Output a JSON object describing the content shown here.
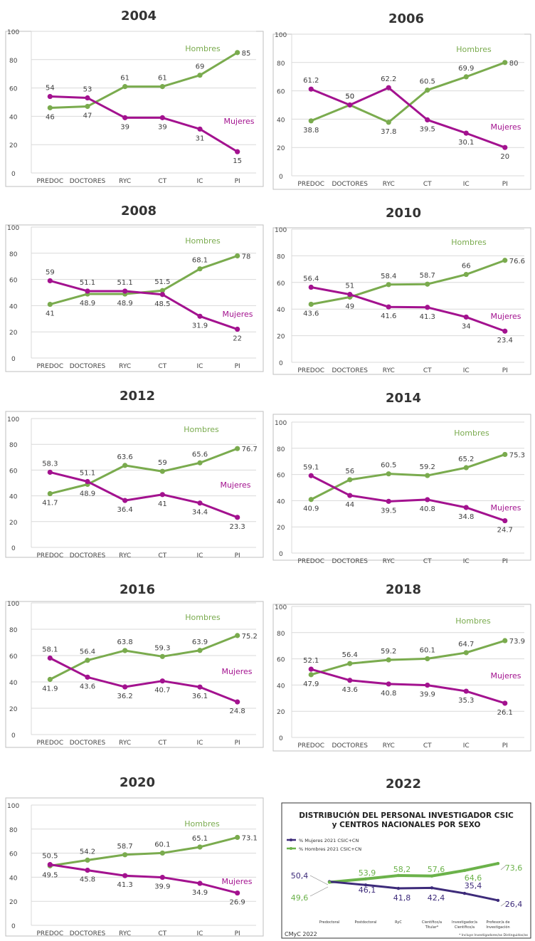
{
  "colors": {
    "hombres": "#7aab4e",
    "mujeres": "#a3128f",
    "grid": "#d9d9d9",
    "axis": "#595959",
    "text": "#444444",
    "dark_line": "#3d2b7a",
    "legend_line": "#6bb24a",
    "legend_dot": "#5b3c9a"
  },
  "chart_data": [
    {
      "type": "line",
      "title": "2004",
      "categories": [
        "PREDOC",
        "DOCTORES",
        "RYC",
        "CT",
        "IC",
        "PI"
      ],
      "ylim": [
        0,
        100
      ],
      "yticks": [
        "0",
        "20",
        "40",
        "60",
        "80",
        "100"
      ],
      "series": [
        {
          "name": "Hombres",
          "values": [
            46,
            47,
            61,
            61,
            69,
            85
          ],
          "labels": [
            "46",
            "47",
            "61",
            "61",
            "69",
            "85"
          ]
        },
        {
          "name": "Mujeres",
          "values": [
            54,
            53,
            39,
            39,
            31,
            15
          ],
          "labels": [
            "54",
            "53",
            "39",
            "39",
            "31",
            "15"
          ]
        }
      ],
      "grid": true
    },
    {
      "type": "line",
      "title": "2006",
      "categories": [
        "PREDOC",
        "DOCTORES",
        "RYC",
        "CT",
        "IC",
        "PI"
      ],
      "ylim": [
        0,
        100
      ],
      "yticks": [
        "0",
        "20",
        "40",
        "60",
        "80",
        "100"
      ],
      "series": [
        {
          "name": "Hombres",
          "values": [
            38.8,
            50,
            37.8,
            60.5,
            69.9,
            80
          ],
          "labels": [
            "38.8",
            "50",
            "37.8",
            "60.5",
            "69.9",
            "80"
          ]
        },
        {
          "name": "Mujeres",
          "values": [
            61.2,
            50,
            62.2,
            39.5,
            30.1,
            20
          ],
          "labels": [
            "61.2",
            "50",
            "62.2",
            "39.5",
            "30.1",
            "20"
          ]
        }
      ],
      "grid": true
    },
    {
      "type": "line",
      "title": "2008",
      "categories": [
        "PREDOC",
        "DOCTORES",
        "RYC",
        "CT",
        "IC",
        "PI"
      ],
      "ylim": [
        0,
        100
      ],
      "yticks": [
        "0",
        "20",
        "40",
        "60",
        "80",
        "100"
      ],
      "series": [
        {
          "name": "Hombres",
          "values": [
            41,
            48.9,
            48.9,
            51.5,
            68.1,
            78
          ],
          "labels": [
            "41",
            "48.9",
            "48.9",
            "51.5",
            "68.1",
            "78"
          ]
        },
        {
          "name": "Mujeres",
          "values": [
            59,
            51.1,
            51.1,
            48.5,
            31.9,
            22
          ],
          "labels": [
            "59",
            "51.1",
            "51.1",
            "48.5",
            "31.9",
            "22"
          ]
        }
      ],
      "grid": true
    },
    {
      "type": "line",
      "title": "2010",
      "categories": [
        "PREDOC",
        "DOCTORES",
        "RYC",
        "CT",
        "IC",
        "PI"
      ],
      "ylim": [
        0,
        100
      ],
      "yticks": [
        "0",
        "20",
        "40",
        "60",
        "80",
        "100"
      ],
      "series": [
        {
          "name": "Hombres",
          "values": [
            43.6,
            49,
            58.4,
            58.7,
            66,
            76.6
          ],
          "labels": [
            "43.6",
            "49",
            "58.4",
            "58.7",
            "66",
            "76.6"
          ]
        },
        {
          "name": "Mujeres",
          "values": [
            56.4,
            51,
            41.6,
            41.3,
            34,
            23.4
          ],
          "labels": [
            "56.4",
            "51",
            "41.6",
            "41.3",
            "34",
            "23.4"
          ]
        }
      ],
      "grid": true
    },
    {
      "type": "line",
      "title": "2012",
      "categories": [
        "PREDOC",
        "DOCTORES",
        "RYC",
        "CT",
        "IC",
        "PI"
      ],
      "ylim": [
        0,
        100
      ],
      "yticks": [
        "0",
        "20",
        "40",
        "60",
        "80",
        "100"
      ],
      "series": [
        {
          "name": "Hombres",
          "values": [
            41.7,
            48.9,
            63.6,
            59,
            65.6,
            76.7
          ],
          "labels": [
            "41.7",
            "48.9",
            "63.6",
            "59",
            "65.6",
            "76.7"
          ]
        },
        {
          "name": "Mujeres",
          "values": [
            58.3,
            51.1,
            36.4,
            41,
            34.4,
            23.3
          ],
          "labels": [
            "58.3",
            "51.1",
            "36.4",
            "41",
            "34.4",
            "23.3"
          ]
        }
      ],
      "grid": true
    },
    {
      "type": "line",
      "title": "2014",
      "categories": [
        "PREDOC",
        "DOCTORES",
        "RYC",
        "CT",
        "IC",
        "PI"
      ],
      "ylim": [
        0,
        100
      ],
      "yticks": [
        "0",
        "20",
        "40",
        "60",
        "80",
        "100"
      ],
      "series": [
        {
          "name": "Hombres",
          "values": [
            40.9,
            56,
            60.5,
            59.2,
            65.2,
            75.3
          ],
          "labels": [
            "40.9",
            "56",
            "60.5",
            "59.2",
            "65.2",
            "75.3"
          ]
        },
        {
          "name": "Mujeres",
          "values": [
            59.1,
            44,
            39.5,
            40.8,
            34.8,
            24.7
          ],
          "labels": [
            "59.1",
            "44",
            "39.5",
            "40.8",
            "34.8",
            "24.7"
          ]
        }
      ],
      "grid": true
    },
    {
      "type": "line",
      "title": "2016",
      "categories": [
        "PREDOC",
        "DOCTORES",
        "RYC",
        "CT",
        "IC",
        "PI"
      ],
      "ylim": [
        0,
        100
      ],
      "yticks": [
        "0",
        "20",
        "40",
        "60",
        "80",
        "100"
      ],
      "series": [
        {
          "name": "Hombres",
          "values": [
            41.9,
            56.4,
            63.8,
            59.3,
            63.9,
            75.2
          ],
          "labels": [
            "41.9",
            "56.4",
            "63.8",
            "59.3",
            "63.9",
            "75.2"
          ]
        },
        {
          "name": "Mujeres",
          "values": [
            58.1,
            43.6,
            36.2,
            40.7,
            36.1,
            24.8
          ],
          "labels": [
            "58.1",
            "43.6",
            "36.2",
            "40.7",
            "36.1",
            "24.8"
          ]
        }
      ],
      "grid": true
    },
    {
      "type": "line",
      "title": "2018",
      "categories": [
        "PREDOC",
        "DOCTORES",
        "RYC",
        "CT",
        "IC",
        "PI"
      ],
      "ylim": [
        0,
        100
      ],
      "yticks": [
        "0",
        "20",
        "40",
        "60",
        "80",
        "100"
      ],
      "series": [
        {
          "name": "Hombres",
          "values": [
            47.9,
            56.4,
            59.2,
            60.1,
            64.7,
            73.9
          ],
          "labels": [
            "47.9",
            "56.4",
            "59.2",
            "60.1",
            "64.7",
            "73.9"
          ]
        },
        {
          "name": "Mujeres",
          "values": [
            52.1,
            43.6,
            40.8,
            39.9,
            35.3,
            26.1
          ],
          "labels": [
            "52.1",
            "43.6",
            "40.8",
            "39.9",
            "35.3",
            "26.1"
          ]
        }
      ],
      "grid": true
    },
    {
      "type": "line",
      "title": "2020",
      "categories": [
        "PREDOC",
        "DOCTORES",
        "RYC",
        "CT",
        "IC",
        "PI"
      ],
      "ylim": [
        0,
        100
      ],
      "yticks": [
        "0",
        "20",
        "40",
        "60",
        "80",
        "100"
      ],
      "series": [
        {
          "name": "Hombres",
          "values": [
            49.5,
            54.2,
            58.7,
            60.1,
            65.1,
            73.1
          ],
          "labels": [
            "49.5",
            "54.2",
            "58.7",
            "60.1",
            "65.1",
            "73.1"
          ]
        },
        {
          "name": "Mujeres",
          "values": [
            50.5,
            45.8,
            41.3,
            39.9,
            34.9,
            26.9
          ],
          "labels": [
            "50.5",
            "45.8",
            "41.3",
            "39.9",
            "34.9",
            "26.9"
          ]
        }
      ],
      "grid": true
    },
    {
      "type": "line",
      "title": "2022",
      "subtitle_lines": [
        "DISTRIBUCIÓN DEL PERSONAL INVESTIGADOR CSIC",
        "y CENTROS NACIONALES POR SEXO"
      ],
      "categories": [
        "Predoctoral",
        "Postdoctoral",
        "RyC",
        "Científico/a Titular*",
        "Investigador/a Científico/a",
        "Profesor/a de Investigación"
      ],
      "category_lines": [
        [
          "Predoctoral"
        ],
        [
          "Postdoctoral"
        ],
        [
          "RyC"
        ],
        [
          "Científico/a",
          "Titular*"
        ],
        [
          "Investigador/a",
          "Científico/a"
        ],
        [
          "Profesor/a de",
          "Investigación"
        ]
      ],
      "ylim": [
        20,
        80
      ],
      "series": [
        {
          "name": "% Mujeres 2021 CSIC+CN",
          "values": [
            50.4,
            46.1,
            41.8,
            42.4,
            35.4,
            26.4
          ],
          "labels": [
            "50,4",
            "46,1",
            "41,8",
            "42,4",
            "35,4",
            "26,4"
          ]
        },
        {
          "name": "% Hombres 2021 CSIC+CN",
          "values": [
            49.6,
            53.9,
            58.2,
            57.6,
            64.6,
            73.6
          ],
          "labels": [
            "49,6",
            "53,9",
            "58,2",
            "57,6",
            "64,6",
            "73,6"
          ]
        }
      ],
      "footnote": "* Incluye Investigadores/as Distinguidos/as",
      "credit": "CMyC 2022",
      "grid": false
    }
  ]
}
